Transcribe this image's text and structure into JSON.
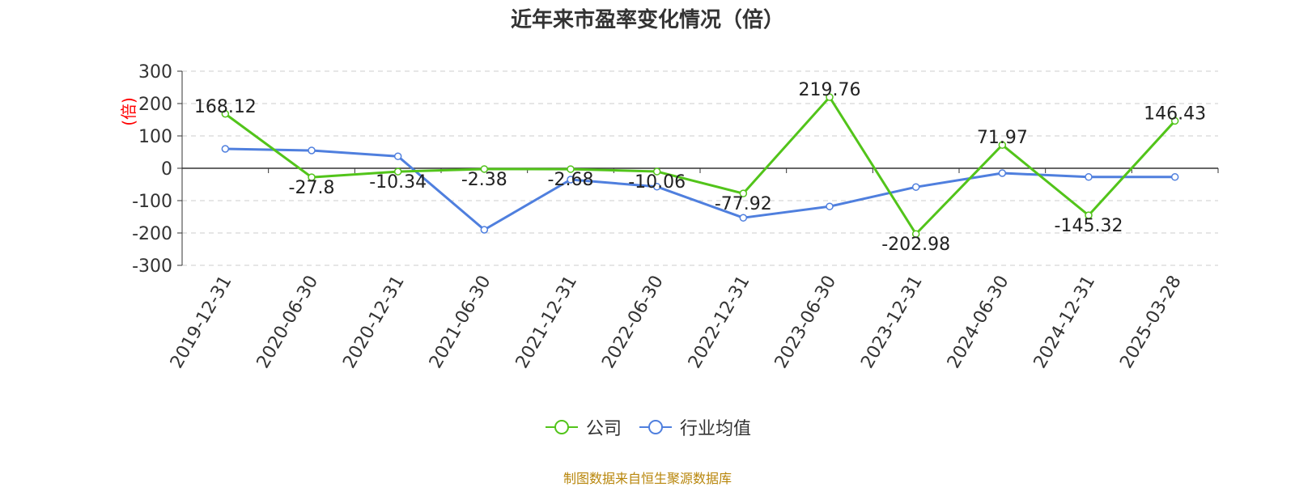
{
  "chart_data": {
    "type": "line",
    "title": "近年来市盈率变化情况（倍）",
    "ylabel": "(倍)",
    "ylim": [
      -300,
      300
    ],
    "yticks": [
      300,
      200,
      100,
      0,
      -100,
      -200,
      -300
    ],
    "grid": true,
    "legend_position": "bottom",
    "categories": [
      "2019-12-31",
      "2020-06-30",
      "2020-12-31",
      "2021-06-30",
      "2021-12-31",
      "2022-06-30",
      "2022-12-31",
      "2023-06-30",
      "2023-12-31",
      "2024-06-30",
      "2024-12-31",
      "2025-03-28"
    ],
    "series": [
      {
        "name": "公司",
        "color": "#52c41a",
        "values": [
          168.12,
          -27.8,
          -10.34,
          -2.38,
          -2.68,
          -10.06,
          -77.92,
          219.76,
          -202.98,
          71.97,
          -145.32,
          146.43
        ],
        "labels": [
          "168.12",
          "-27.8",
          "-10.34",
          "-2.38",
          "-2.68",
          "-10.06",
          "-77.92",
          "219.76",
          "-202.98",
          "71.97",
          "-145.32",
          "146.43"
        ]
      },
      {
        "name": "行业均值",
        "color": "#4f7fde",
        "values": [
          60,
          55,
          37,
          -190,
          -35,
          -57,
          -153,
          -118,
          -58,
          -15,
          -27,
          -27
        ]
      }
    ]
  },
  "source_note": "制图数据来自恒生聚源数据库"
}
